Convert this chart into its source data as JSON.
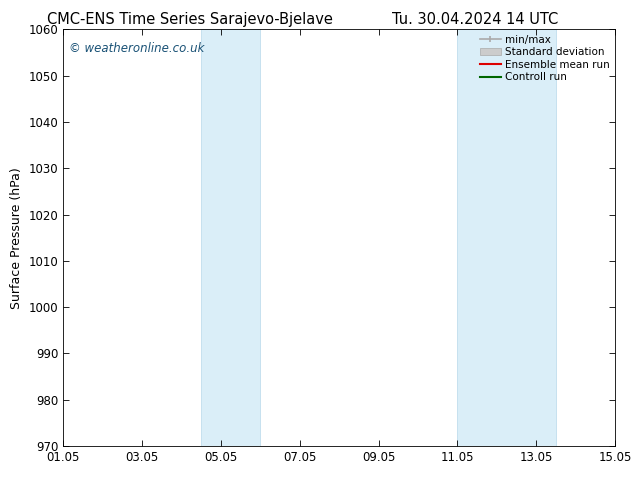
{
  "title_left": "CMC-ENS Time Series Sarajevo-Bjelave",
  "title_right": "Tu. 30.04.2024 14 UTC",
  "ylabel": "Surface Pressure (hPa)",
  "xlabel_ticks": [
    "01.05",
    "03.05",
    "05.05",
    "07.05",
    "09.05",
    "11.05",
    "13.05",
    "15.05"
  ],
  "xlim": [
    0,
    14
  ],
  "ylim": [
    970,
    1060
  ],
  "yticks": [
    970,
    980,
    990,
    1000,
    1010,
    1020,
    1030,
    1040,
    1050,
    1060
  ],
  "shaded_bands": [
    {
      "xmin": 3.5,
      "xmax": 5.0
    },
    {
      "xmin": 10.0,
      "xmax": 12.5
    }
  ],
  "band_color": "#daeef8",
  "band_edge_color": "#b8d8ea",
  "background_color": "#ffffff",
  "watermark_text": "© weatheronline.co.uk",
  "watermark_color": "#1a5276",
  "legend_items": [
    {
      "label": "min/max",
      "color": "#aaaaaa",
      "lw": 1.5
    },
    {
      "label": "Standard deviation",
      "color": "#cccccc",
      "lw": 6
    },
    {
      "label": "Ensemble mean run",
      "color": "#dd0000",
      "lw": 1.5
    },
    {
      "label": "Controll run",
      "color": "#006600",
      "lw": 1.5
    }
  ],
  "title_fontsize": 10.5,
  "tick_fontsize": 8.5,
  "ylabel_fontsize": 9,
  "watermark_fontsize": 8.5,
  "legend_fontsize": 7.5
}
